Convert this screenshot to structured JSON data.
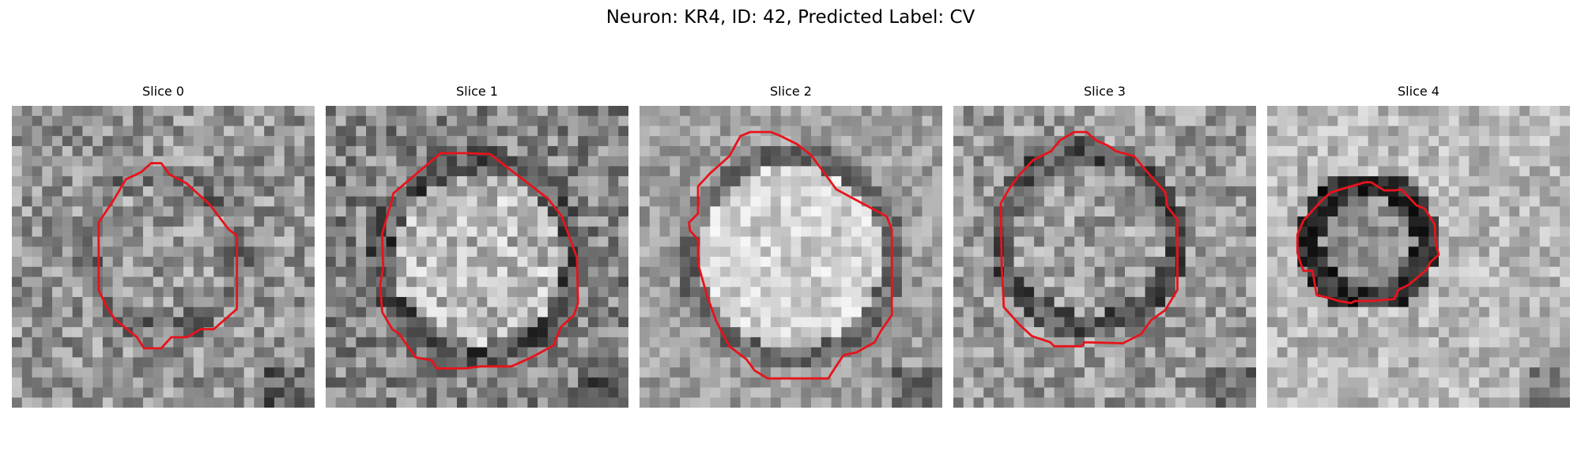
{
  "figure": {
    "title": "Neuron: KR4, ID: 42, Predicted Label: CV"
  },
  "panels": [
    {
      "title": "Slice 0"
    },
    {
      "title": "Slice 1"
    },
    {
      "title": "Slice 2"
    },
    {
      "title": "Slice 3"
    },
    {
      "title": "Slice 4"
    }
  ],
  "colors": {
    "contour": "#e8131b",
    "background": "#ffffff",
    "colormap": "grayscale"
  }
}
